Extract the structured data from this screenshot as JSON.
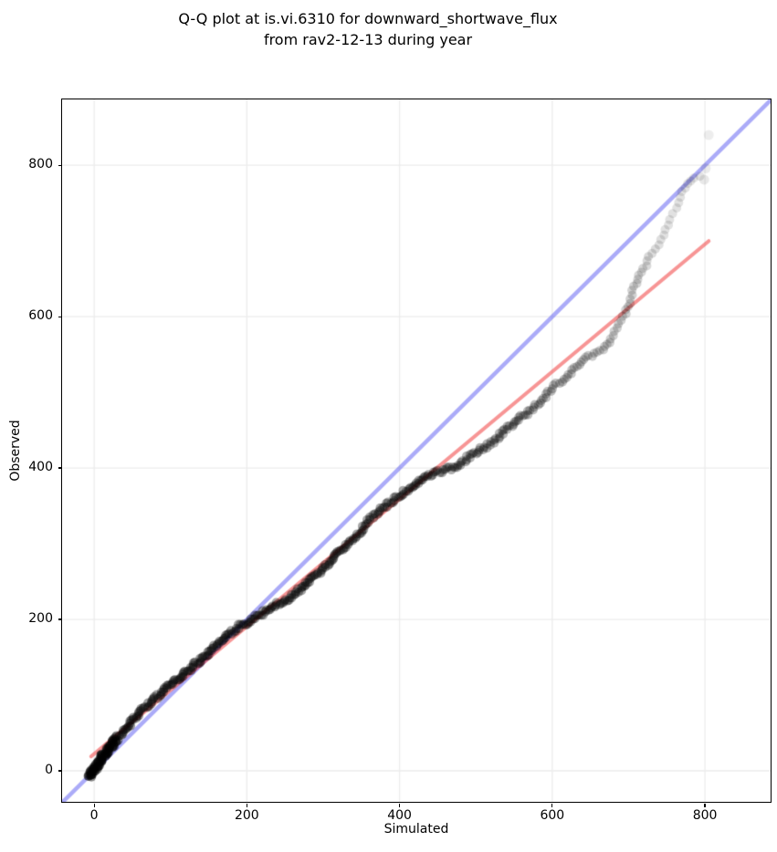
{
  "title": {
    "line1": "Q-Q plot at is.vi.6310 for downward_shortwave_flux",
    "line2": "from rav2-12-13 during year"
  },
  "axes": {
    "x": {
      "label": "Simulated",
      "ticks": [
        0,
        200,
        400,
        600,
        800
      ]
    },
    "y": {
      "label": "Observed",
      "ticks": [
        0,
        200,
        400,
        600,
        800
      ]
    }
  },
  "colors": {
    "background": "#ffffff",
    "grid": "#ececec",
    "spine": "#000000",
    "text": "#000000",
    "identity_line": "rgba(88,88,242,0.50)",
    "fit_line": "rgba(240,62,62,0.55)",
    "points": "#000000"
  },
  "chart_data": {
    "type": "scatter",
    "title": "Q-Q plot at is.vi.6310 for downward_shortwave_flux from rav2-12-13 during year",
    "xlabel": "Simulated",
    "ylabel": "Observed",
    "xlim": [
      -42,
      886
    ],
    "ylim": [
      -41,
      887
    ],
    "grid": true,
    "identity_line": {
      "slope": 1,
      "intercept": 0,
      "color": "rgba(88,88,242,0.50)",
      "width": 4.5
    },
    "fit_line": {
      "x": [
        -4,
        805
      ],
      "y": [
        19,
        700
      ],
      "color": "rgba(240,62,62,0.55)",
      "width": 4
    },
    "quantile_curve": [
      [
        -6,
        -8
      ],
      [
        -3,
        -3
      ],
      [
        0,
        2
      ],
      [
        6,
        11
      ],
      [
        12,
        20
      ],
      [
        20,
        30
      ],
      [
        30,
        43
      ],
      [
        40,
        55
      ],
      [
        50,
        66
      ],
      [
        60,
        77
      ],
      [
        70,
        87
      ],
      [
        80,
        96
      ],
      [
        90,
        105
      ],
      [
        100,
        114
      ],
      [
        110,
        122
      ],
      [
        120,
        130
      ],
      [
        130,
        139
      ],
      [
        140,
        147
      ],
      [
        150,
        156
      ],
      [
        160,
        165
      ],
      [
        170,
        175
      ],
      [
        180,
        184
      ],
      [
        190,
        191
      ],
      [
        200,
        196
      ],
      [
        210,
        202
      ],
      [
        220,
        208
      ],
      [
        230,
        214
      ],
      [
        240,
        220
      ],
      [
        250,
        226
      ],
      [
        260,
        231
      ],
      [
        270,
        240
      ],
      [
        280,
        248
      ],
      [
        290,
        258
      ],
      [
        300,
        268
      ],
      [
        310,
        278
      ],
      [
        320,
        288
      ],
      [
        330,
        298
      ],
      [
        345,
        312
      ],
      [
        356,
        326
      ],
      [
        370,
        341
      ],
      [
        388,
        355
      ],
      [
        400,
        364
      ],
      [
        416,
        376
      ],
      [
        430,
        385
      ],
      [
        445,
        393
      ],
      [
        460,
        398
      ],
      [
        475,
        401
      ],
      [
        487,
        412
      ],
      [
        500,
        421
      ],
      [
        511,
        427
      ],
      [
        523,
        434
      ],
      [
        540,
        452
      ],
      [
        555,
        464
      ],
      [
        571,
        476
      ],
      [
        585,
        490
      ],
      [
        600,
        505
      ],
      [
        615,
        518
      ],
      [
        630,
        531
      ],
      [
        642,
        542
      ],
      [
        655,
        551
      ],
      [
        666,
        557
      ],
      [
        677,
        570
      ],
      [
        685,
        585
      ],
      [
        693,
        600
      ],
      [
        700,
        618
      ],
      [
        707,
        640
      ],
      [
        714,
        654
      ],
      [
        722,
        668
      ],
      [
        730,
        684
      ],
      [
        738,
        696
      ],
      [
        746,
        708
      ],
      [
        754,
        728
      ],
      [
        762,
        744
      ],
      [
        770,
        765
      ],
      [
        778,
        775
      ],
      [
        786,
        782
      ],
      [
        793,
        786
      ],
      [
        800,
        790
      ]
    ],
    "outlier_points": [
      [
        805,
        840,
        0.07
      ],
      [
        801,
        796,
        0.08
      ],
      [
        799,
        781,
        0.09
      ]
    ],
    "marker": {
      "radius_px": 5,
      "color": "#000000",
      "alpha_profile": [
        [
          -10,
          0.4
        ],
        [
          60,
          0.38
        ],
        [
          420,
          0.34
        ],
        [
          500,
          0.3
        ],
        [
          560,
          0.27
        ],
        [
          620,
          0.23
        ],
        [
          660,
          0.19
        ],
        [
          700,
          0.18
        ],
        [
          725,
          0.15
        ],
        [
          745,
          0.12
        ],
        [
          806,
          0.11
        ]
      ],
      "step_profile": [
        [
          -10,
          2.0
        ],
        [
          420,
          2.2
        ],
        [
          560,
          2.6
        ],
        [
          650,
          4.0
        ],
        [
          715,
          5.5
        ],
        [
          745,
          8.0
        ],
        [
          806,
          8.5
        ]
      ],
      "dense_head": {
        "x_max": 20,
        "step": 1.2,
        "jitter": 3.0,
        "alpha": 0.45
      }
    }
  }
}
